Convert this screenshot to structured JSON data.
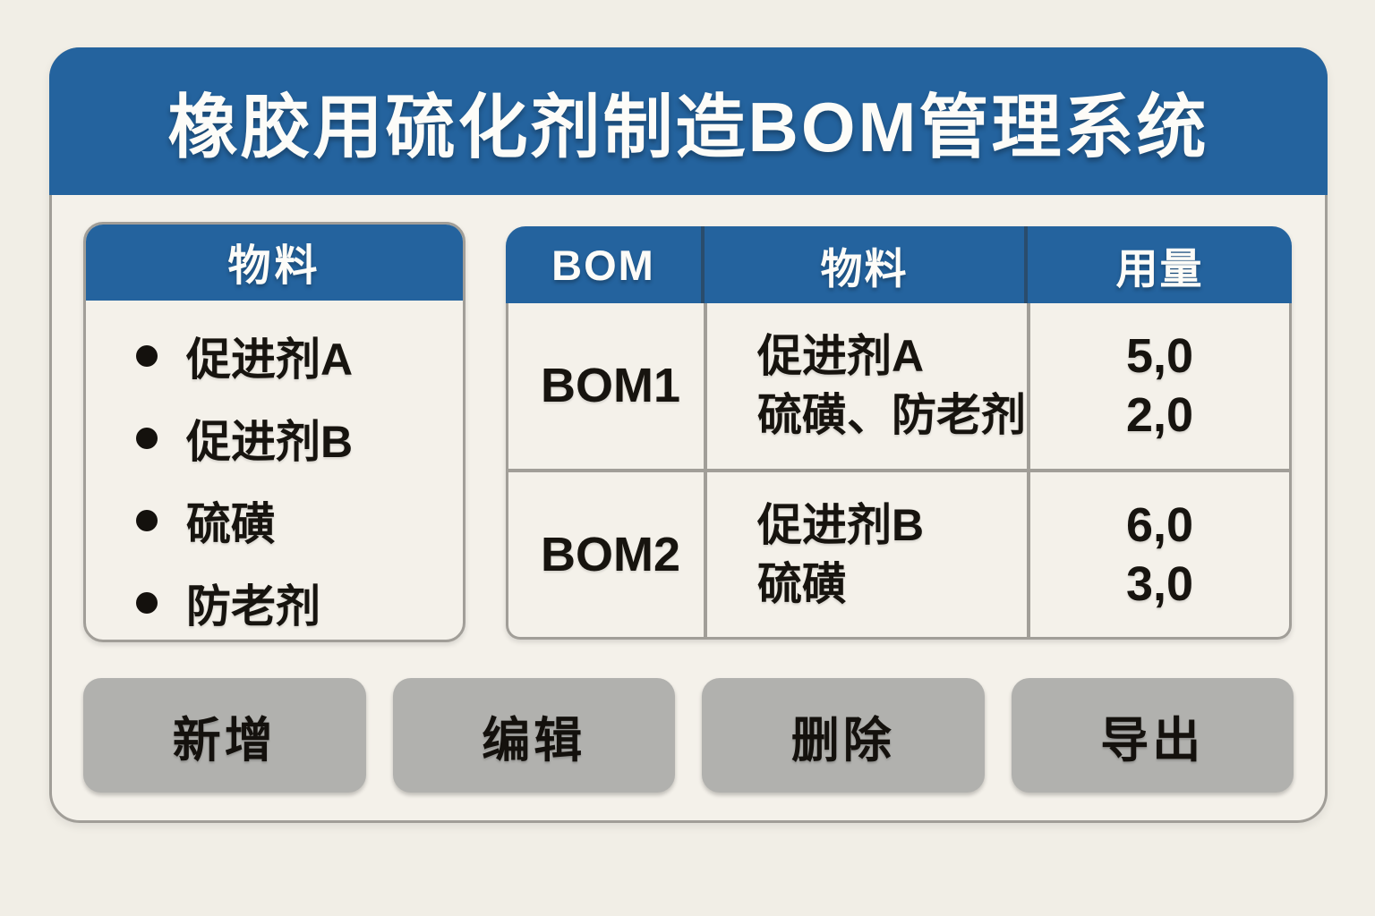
{
  "title": "橡胶用硫化剂制造BOM管理系统",
  "colors": {
    "blue": "#24639e",
    "bg": "#f1eee6",
    "card_bg": "#f4f1ea",
    "border": "#a19e98",
    "button_bg": "#b1b1ae",
    "text": "#17140f"
  },
  "materials_panel": {
    "header": "物料",
    "items": [
      "促进剂A",
      "促进剂B",
      "硫磺",
      "防老剂"
    ]
  },
  "bom_table": {
    "col_bom": "BOM",
    "col_material": "物料",
    "col_amount": "用量",
    "rows": [
      {
        "bom": "BOM1",
        "material_line1": "促进剂A",
        "material_line2": "硫磺、防老剂",
        "amount_line1": "5,0",
        "amount_line2": "2,0"
      },
      {
        "bom": "BOM2",
        "material_line1": "促进剂B",
        "material_line2": "硫磺",
        "amount_line1": "6,0",
        "amount_line2": "3,0"
      }
    ]
  },
  "buttons": {
    "add": "新增",
    "edit": "编辑",
    "delete": "删除",
    "export": "导出"
  }
}
